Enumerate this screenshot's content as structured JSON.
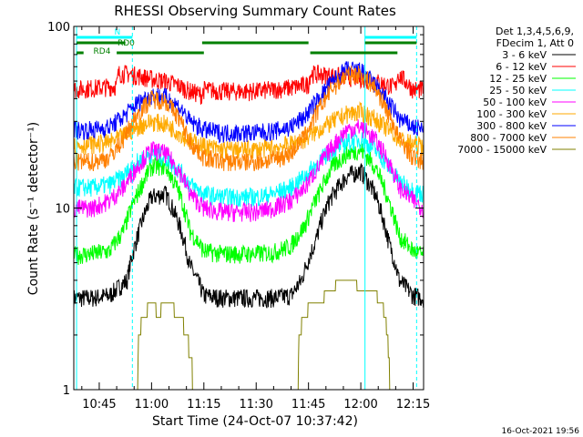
{
  "chart_data": {
    "type": "line",
    "title": "RHESSI Observing Summary Count Rates",
    "xlabel": "Start Time (24-Oct-07 10:37:42)",
    "ylabel": "Count Rate (s⁻¹ detector⁻¹)",
    "y_scale": "log",
    "ylim": [
      1,
      100
    ],
    "xlim_minutes": [
      37.7,
      138.0
    ],
    "x_ticks": [
      {
        "t": 45,
        "label": "10:45"
      },
      {
        "t": 60,
        "label": "11:00"
      },
      {
        "t": 75,
        "label": "11:15"
      },
      {
        "t": 90,
        "label": "11:30"
      },
      {
        "t": 105,
        "label": "11:45"
      },
      {
        "t": 120,
        "label": "12:00"
      },
      {
        "t": 135,
        "label": "12:15"
      }
    ],
    "y_ticks": [
      {
        "v": 1,
        "label": "1"
      },
      {
        "v": 10,
        "label": "10"
      },
      {
        "v": 100,
        "label": "100"
      }
    ],
    "legend_header": [
      "Det 1,3,4,5,6,9,",
      "FDecim 1, Att 0"
    ],
    "legend_position": "right",
    "series": [
      {
        "name": "3 - 6 keV",
        "color": "#000000",
        "x": [
          37.7,
          43,
          48,
          53,
          56,
          60,
          64,
          68,
          71,
          75,
          80,
          85,
          90,
          95,
          100,
          103,
          107,
          111,
          116,
          120,
          124,
          128,
          131,
          135,
          138
        ],
        "y": [
          3.2,
          3.2,
          3.3,
          4.0,
          7,
          11.5,
          12,
          8,
          4.8,
          3.3,
          3.2,
          3.2,
          3.2,
          3.2,
          3.3,
          4,
          6.5,
          11,
          15,
          16,
          12,
          6.5,
          4,
          3.3,
          3.2
        ]
      },
      {
        "name": "6 - 12 keV",
        "color": "#ff0000",
        "x": [
          37.7,
          45,
          50,
          50.5,
          53,
          57,
          61,
          64,
          68,
          71,
          74.5,
          75,
          80,
          90,
          100,
          105,
          105.5,
          110,
          115,
          120,
          124,
          127,
          130,
          130.5,
          135,
          138
        ],
        "y": [
          45,
          46,
          47,
          55,
          55,
          53,
          51,
          50,
          47,
          44,
          42,
          45,
          44,
          44,
          46,
          48,
          55,
          54,
          53,
          52,
          50,
          48,
          46,
          55,
          45,
          45
        ]
      },
      {
        "name": "12 - 25 keV",
        "color": "#00ff00",
        "x": [
          37.7,
          43,
          48,
          52,
          56,
          60,
          64,
          68,
          71,
          75,
          80,
          85,
          90,
          95,
          100,
          104,
          108,
          112,
          116,
          120,
          124,
          128,
          131,
          135,
          138
        ],
        "y": [
          5.5,
          5.6,
          5.8,
          7.5,
          12,
          17,
          17,
          12,
          7.5,
          5.8,
          5.6,
          5.6,
          5.6,
          5.7,
          6.2,
          8,
          12,
          17,
          20,
          21,
          17,
          11,
          7,
          5.8,
          5.5
        ]
      },
      {
        "name": "25 - 50 keV",
        "color": "#00ffff",
        "x": [
          37.7,
          43,
          48,
          52,
          56,
          60,
          64,
          68,
          71,
          75,
          80,
          85,
          90,
          95,
          100,
          104,
          108,
          112,
          116,
          120,
          124,
          128,
          131,
          135,
          138
        ],
        "y": [
          13,
          13,
          13.5,
          15,
          18,
          20,
          19,
          16,
          13.5,
          12,
          11.5,
          11.5,
          11.5,
          12,
          13,
          15,
          18,
          21,
          23,
          24,
          21,
          17,
          14,
          12.5,
          12
        ]
      },
      {
        "name": "50 - 100 keV",
        "color": "#ff00ff",
        "x": [
          37.7,
          43,
          48,
          52,
          56,
          60,
          64,
          68,
          71,
          75,
          80,
          85,
          90,
          95,
          100,
          104,
          108,
          112,
          116,
          120,
          124,
          128,
          131,
          135,
          138
        ],
        "y": [
          10,
          10,
          11,
          13,
          17,
          21,
          20,
          16,
          12,
          10,
          9.5,
          9.5,
          9.5,
          10,
          11,
          13,
          17,
          22,
          27,
          28,
          24,
          18,
          13,
          11,
          10
        ]
      },
      {
        "name": "100 - 300 keV",
        "color": "#ffaa00",
        "x": [
          37.7,
          43,
          48,
          52,
          56,
          60,
          64,
          68,
          71,
          75,
          80,
          85,
          90,
          95,
          100,
          104,
          108,
          112,
          116,
          120,
          124,
          128,
          131,
          135,
          138
        ],
        "y": [
          22,
          22.5,
          23,
          25,
          28,
          30,
          29,
          26,
          23.5,
          22,
          21,
          21,
          21,
          21.5,
          22.5,
          24,
          27,
          30,
          33,
          34,
          31,
          27,
          24,
          22.5,
          22
        ]
      },
      {
        "name": "300 - 800 keV",
        "color": "#0000ff",
        "x": [
          37.7,
          43,
          48,
          52,
          56,
          60,
          64,
          68,
          71,
          75,
          80,
          85,
          90,
          95,
          100,
          104,
          108,
          112,
          116,
          120,
          124,
          128,
          131,
          135,
          138
        ],
        "y": [
          27,
          27,
          28,
          32,
          38,
          42,
          41,
          36,
          30,
          27,
          26,
          26,
          26,
          26.5,
          28,
          32,
          40,
          50,
          58,
          57,
          48,
          38,
          31,
          28,
          27
        ]
      },
      {
        "name": "800 - 7000 keV",
        "color": "#ff8000",
        "x": [
          37.7,
          43,
          48,
          52,
          56,
          60,
          64,
          68,
          71,
          75,
          80,
          85,
          90,
          95,
          100,
          104,
          108,
          112,
          116,
          120,
          124,
          128,
          131,
          135,
          138
        ],
        "y": [
          18,
          18,
          19,
          24,
          33,
          40,
          39,
          31,
          23,
          19,
          18,
          18,
          18,
          18.5,
          20,
          25,
          35,
          46,
          54,
          55,
          46,
          33,
          24,
          19,
          18
        ]
      },
      {
        "name": "7000 - 15000 keV",
        "color": "#808000",
        "x": [
          56,
          56.3,
          58,
          60,
          62,
          64,
          66,
          68,
          70,
          71.5,
          72,
          102,
          102.3,
          104,
          106,
          109,
          111,
          113,
          115,
          117,
          118.5,
          120,
          121.5,
          123,
          125,
          127,
          128.5
        ],
        "y": [
          1.0,
          2.0,
          2.6,
          3.0,
          2.6,
          3.0,
          2.8,
          2.6,
          2.0,
          1.4,
          1.0,
          1.0,
          2.0,
          2.6,
          3.0,
          3.2,
          3.4,
          3.8,
          4.2,
          4.0,
          3.8,
          3.6,
          3.4,
          3.6,
          3.2,
          2.6,
          1.0
        ]
      }
    ],
    "vertical_markers": [
      {
        "t": 38.5,
        "style": "solid",
        "color": "#00ffff"
      },
      {
        "t": 54.5,
        "style": "dashed",
        "color": "#00ffff"
      },
      {
        "t": 121.2,
        "style": "solid",
        "color": "#00ffff"
      },
      {
        "t": 136.0,
        "style": "dashed",
        "color": "#00ffff"
      }
    ],
    "flag_bars": [
      {
        "label": "N",
        "color": "#00ffff",
        "level": 1,
        "segments": [
          [
            38.5,
            54.5
          ],
          [
            121.2,
            136.0
          ]
        ]
      },
      {
        "label": "RD0",
        "color": "#008000",
        "level": 2,
        "segments": [
          [
            38.5,
            52.5
          ],
          [
            74.5,
            105.0
          ],
          [
            121.2,
            136.0
          ]
        ]
      },
      {
        "label": "RD4",
        "color": "#008000",
        "level": 3,
        "segments": [
          [
            38.5,
            40.5
          ],
          [
            50.0,
            75.0
          ],
          [
            105.5,
            130.5
          ]
        ]
      }
    ],
    "grid": false
  },
  "footer": {
    "timestamp": "16-Oct-2021 19:56"
  }
}
